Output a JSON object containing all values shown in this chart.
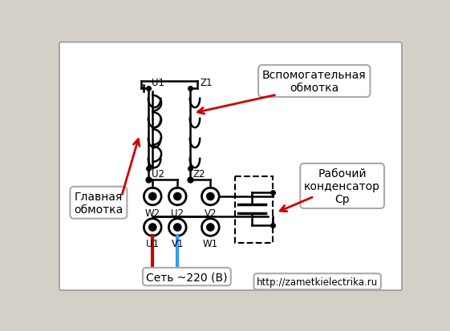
{
  "bg_color": "#d4d0c8",
  "diagram_bg": "#ffffff",
  "label_glavnaya": "Главная\nобмотка",
  "label_vspomogatelnaya": "Вспомогательная\nобмотка",
  "label_rabochiy": "Рабочий\nконденсатор\nСр",
  "label_set": "Сеть ~220 (В)",
  "label_url": "http://zametkielectrika.ru",
  "black": "#000000",
  "red": "#cc0000",
  "blue": "#3399ff"
}
